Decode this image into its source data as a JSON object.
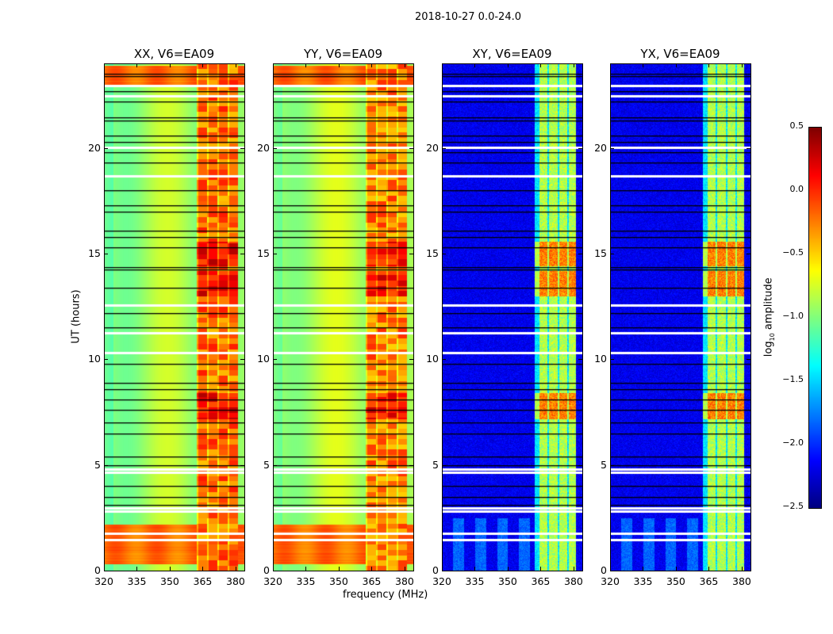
{
  "chart_data": {
    "type": "heatmap",
    "title": "2018-10-27 0.0-24.0",
    "xlabel": "frequency (MHz)",
    "ylabel": "UT (hours)",
    "xlim": [
      320,
      384
    ],
    "ylim": [
      0,
      24
    ],
    "xticks": [
      "320",
      "335",
      "350",
      "365",
      "380"
    ],
    "yticks": [
      "0",
      "5",
      "10",
      "15",
      "20"
    ],
    "panels": [
      {
        "title": "XX, V6=EA09",
        "kind": "auto",
        "base": -0.9,
        "band_level": -0.2
      },
      {
        "title": "YY, V6=EA09",
        "kind": "auto",
        "base": -0.85,
        "band_level": -0.25
      },
      {
        "title": "XY, V6=EA09",
        "kind": "cross",
        "base": -2.3,
        "band_level": -0.8
      },
      {
        "title": "YX, V6=EA09",
        "kind": "cross",
        "base": -2.3,
        "band_level": -0.8
      }
    ],
    "band_mhz": [
      362,
      381
    ],
    "high_time_ranges_hours": [
      [
        0.3,
        2.2
      ],
      [
        22.9,
        23.9
      ]
    ],
    "strong_band_ranges_hours": [
      [
        14.4,
        15.6
      ],
      [
        7.2,
        8.4
      ],
      [
        13.0,
        14.2
      ]
    ],
    "flagged_rows_hours": [
      2.85,
      3.0,
      4.7,
      4.85,
      10.35,
      11.3,
      12.6,
      18.7,
      20.05,
      22.5,
      23.0,
      1.5,
      1.8
    ],
    "boundary_rows_hours": [
      3.1,
      3.5,
      4.0,
      5.0,
      5.4,
      6.5,
      7.0,
      7.6,
      8.1,
      8.6,
      8.9,
      9.8,
      11.5,
      12.2,
      13.4,
      14.25,
      14.35,
      15.3,
      15.8,
      16.1,
      17.0,
      17.3,
      18.0,
      19.3,
      19.8,
      20.3,
      20.6,
      21.3,
      21.45,
      22.2,
      22.7,
      23.4,
      23.5
    ],
    "colorbar": {
      "label": "log10 amplitude",
      "range": [
        -2.5,
        0.5
      ],
      "ticks": [
        "0.5",
        "0.0",
        "−0.5",
        "−1.0",
        "−1.5",
        "−2.0",
        "−2.5"
      ],
      "colormap": "jet"
    }
  }
}
